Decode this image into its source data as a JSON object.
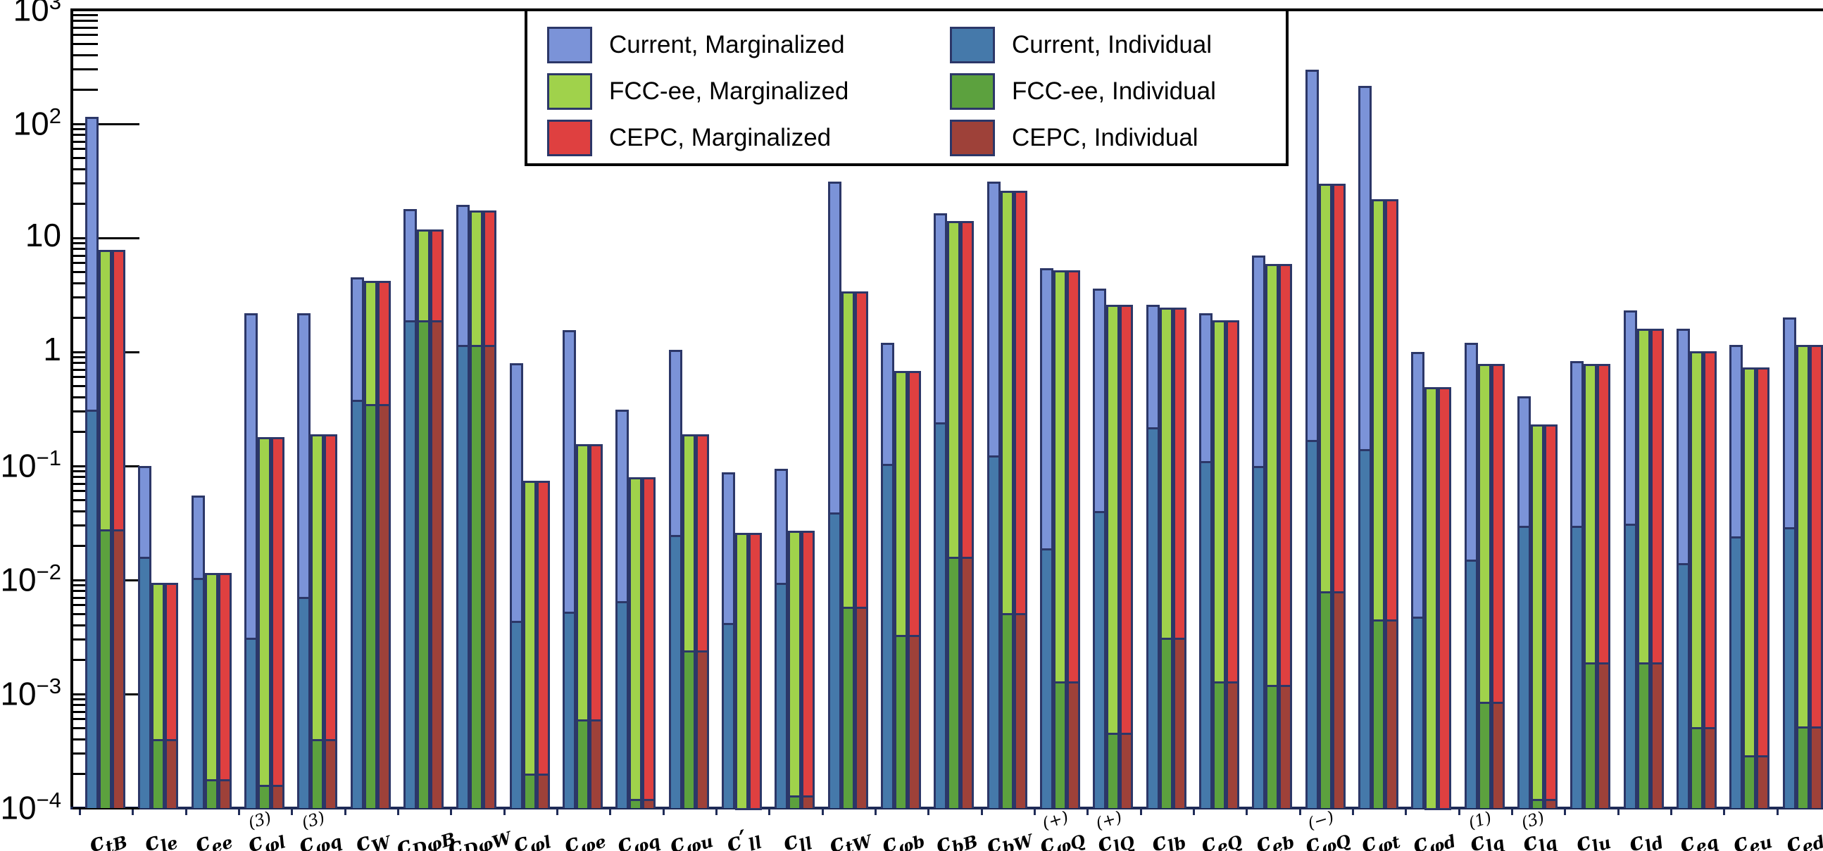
{
  "colors": {
    "current_marginalized": "#7b93d8",
    "current_individual": "#4579aa",
    "fccee_marginalized": "#a0d24b",
    "fccee_individual": "#5ca13e",
    "cepc_marginalized": "#df4040",
    "cepc_individual": "#9e4139",
    "bar_border": "#2c3768",
    "axis_line": "#000000",
    "bottom_axis_line": "#1f2b57"
  },
  "legend": {
    "entries": [
      {
        "key": "current_marginalized",
        "label": "Current, Marginalized",
        "col": 0,
        "row": 0
      },
      {
        "key": "fccee_marginalized",
        "label": "FCC-ee, Marginalized",
        "col": 0,
        "row": 1
      },
      {
        "key": "cepc_marginalized",
        "label": "CEPC, Marginalized",
        "col": 0,
        "row": 2
      },
      {
        "key": "current_individual",
        "label": "Current, Individual",
        "col": 1,
        "row": 0
      },
      {
        "key": "fccee_individual",
        "label": "FCC-ee, Individual",
        "col": 1,
        "row": 1
      },
      {
        "key": "cepc_individual",
        "label": "CEPC, Individual",
        "col": 1,
        "row": 2
      }
    ]
  },
  "axis": {
    "yscale": "log",
    "ylim": [
      0.0001,
      1000
    ],
    "y_major_ticks": [
      {
        "value": 1000,
        "base": "10",
        "exp": "3"
      },
      {
        "value": 100,
        "base": "10",
        "exp": "2"
      },
      {
        "value": 10,
        "base": "10",
        "exp": ""
      },
      {
        "value": 1,
        "base": "1",
        "exp": ""
      },
      {
        "value": 0.1,
        "base": "10",
        "exp": "−1"
      },
      {
        "value": 0.01,
        "base": "10",
        "exp": "−2"
      },
      {
        "value": 0.001,
        "base": "10",
        "exp": "−3"
      },
      {
        "value": 0.0001,
        "base": "10",
        "exp": "−4"
      }
    ]
  },
  "chart_data": {
    "type": "bar",
    "yscale": "log",
    "ylim": [
      0.0001,
      1000
    ],
    "title": "",
    "xlabel": "",
    "ylabel": "",
    "legend_position": "top-center",
    "grid": false,
    "series_order": [
      "current_marginalized",
      "fccee_marginalized",
      "cepc_marginalized",
      "current_individual",
      "fccee_individual",
      "cepc_individual"
    ],
    "categories": [
      "c_tB",
      "c_le",
      "c_ee",
      "c_phi-l(3)",
      "c_phi-q(3)",
      "c_W",
      "c_DphiB",
      "c_DphiW",
      "c_phi-l",
      "c_phi-e",
      "c_phi-q",
      "c_phi-u",
      "c'_ll",
      "c_ll",
      "c_tW",
      "c_phi-b",
      "c_bB",
      "c_bW",
      "c_phiQ(+)",
      "c_lQ(+)",
      "c_lb",
      "c_eQ",
      "c_eb",
      "c_phiQ(−)",
      "c_phi-t",
      "c_phi-d",
      "c_lq(1)",
      "c_lq(3)",
      "c_lu",
      "c_ld",
      "c_eq",
      "c_eu",
      "c_ed"
    ],
    "groups": [
      {
        "base": "c",
        "prime": false,
        "sup": "",
        "sub": "tB",
        "marg": {
          "current": 115,
          "fccee": 7.8,
          "cepc": 7.8
        },
        "indiv": {
          "current": 0.31,
          "fccee": 0.028,
          "cepc": 0.028
        }
      },
      {
        "base": "c",
        "prime": false,
        "sup": "",
        "sub": "le",
        "marg": {
          "current": 0.1,
          "fccee": 0.0095,
          "cepc": 0.0095
        },
        "indiv": {
          "current": 0.016,
          "fccee": 0.0004,
          "cepc": 0.0004
        }
      },
      {
        "base": "c",
        "prime": false,
        "sup": "",
        "sub": "ee",
        "marg": {
          "current": 0.055,
          "fccee": 0.0115,
          "cepc": 0.0115
        },
        "indiv": {
          "current": 0.0105,
          "fccee": 0.00018,
          "cepc": 0.00018
        }
      },
      {
        "base": "c",
        "prime": false,
        "sup": "(3)",
        "sub": "φl",
        "marg": {
          "current": 2.2,
          "fccee": 0.18,
          "cepc": 0.18
        },
        "indiv": {
          "current": 0.0031,
          "fccee": 0.00016,
          "cepc": 0.00016
        }
      },
      {
        "base": "c",
        "prime": false,
        "sup": "(3)",
        "sub": "φq",
        "marg": {
          "current": 2.2,
          "fccee": 0.19,
          "cepc": 0.19
        },
        "indiv": {
          "current": 0.0071,
          "fccee": 0.0004,
          "cepc": 0.0004
        }
      },
      {
        "base": "c",
        "prime": false,
        "sup": "",
        "sub": "W",
        "marg": {
          "current": 4.5,
          "fccee": 4.2,
          "cepc": 4.2
        },
        "indiv": {
          "current": 0.38,
          "fccee": 0.35,
          "cepc": 0.35
        }
      },
      {
        "base": "c",
        "prime": false,
        "sup": "",
        "sub": "DφB",
        "marg": {
          "current": 18,
          "fccee": 11.8,
          "cepc": 11.8
        },
        "indiv": {
          "current": 1.9,
          "fccee": 1.9,
          "cepc": 1.9
        }
      },
      {
        "base": "c",
        "prime": false,
        "sup": "",
        "sub": "DφW",
        "marg": {
          "current": 19.5,
          "fccee": 17.5,
          "cepc": 17.5
        },
        "indiv": {
          "current": 1.15,
          "fccee": 1.15,
          "cepc": 1.15
        }
      },
      {
        "base": "c",
        "prime": false,
        "sup": "",
        "sub": "φl",
        "marg": {
          "current": 0.8,
          "fccee": 0.074,
          "cepc": 0.074
        },
        "indiv": {
          "current": 0.0044,
          "fccee": 0.0002,
          "cepc": 0.0002
        }
      },
      {
        "base": "c",
        "prime": false,
        "sup": "",
        "sub": "φe",
        "marg": {
          "current": 1.55,
          "fccee": 0.155,
          "cepc": 0.155
        },
        "indiv": {
          "current": 0.0053,
          "fccee": 0.0006,
          "cepc": 0.0006
        }
      },
      {
        "base": "c",
        "prime": false,
        "sup": "",
        "sub": "φq",
        "marg": {
          "current": 0.31,
          "fccee": 0.08,
          "cepc": 0.08
        },
        "indiv": {
          "current": 0.0065,
          "fccee": 0.00012,
          "cepc": 0.00012
        }
      },
      {
        "base": "c",
        "prime": false,
        "sup": "",
        "sub": "φu",
        "marg": {
          "current": 1.05,
          "fccee": 0.19,
          "cepc": 0.19
        },
        "indiv": {
          "current": 0.025,
          "fccee": 0.0024,
          "cepc": 0.0024
        }
      },
      {
        "base": "c",
        "prime": true,
        "sup": "",
        "sub": "ll",
        "marg": {
          "current": 0.088,
          "fccee": 0.026,
          "cepc": 0.026
        },
        "indiv": {
          "current": 0.0042,
          "fccee": 0.0001,
          "cepc": 0.0001
        }
      },
      {
        "base": "c",
        "prime": false,
        "sup": "",
        "sub": "ll",
        "marg": {
          "current": 0.095,
          "fccee": 0.027,
          "cepc": 0.027
        },
        "indiv": {
          "current": 0.0095,
          "fccee": 0.00013,
          "cepc": 0.00013
        }
      },
      {
        "base": "c",
        "prime": false,
        "sup": "",
        "sub": "tW",
        "marg": {
          "current": 31,
          "fccee": 3.4,
          "cepc": 3.4
        },
        "indiv": {
          "current": 0.039,
          "fccee": 0.0058,
          "cepc": 0.0058
        }
      },
      {
        "base": "c",
        "prime": false,
        "sup": "",
        "sub": "φb",
        "marg": {
          "current": 1.2,
          "fccee": 0.68,
          "cepc": 0.68
        },
        "indiv": {
          "current": 0.104,
          "fccee": 0.0033,
          "cepc": 0.0033
        }
      },
      {
        "base": "c",
        "prime": false,
        "sup": "",
        "sub": "bB",
        "marg": {
          "current": 16.5,
          "fccee": 14,
          "cepc": 14
        },
        "indiv": {
          "current": 0.24,
          "fccee": 0.016,
          "cepc": 0.016
        }
      },
      {
        "base": "c",
        "prime": false,
        "sup": "",
        "sub": "bW",
        "marg": {
          "current": 31,
          "fccee": 26,
          "cepc": 26
        },
        "indiv": {
          "current": 0.124,
          "fccee": 0.0051,
          "cepc": 0.0051
        }
      },
      {
        "base": "c",
        "prime": false,
        "sup": "(+)",
        "sub": "φQ",
        "marg": {
          "current": 5.4,
          "fccee": 5.2,
          "cepc": 5.2
        },
        "indiv": {
          "current": 0.019,
          "fccee": 0.0013,
          "cepc": 0.0013
        }
      },
      {
        "base": "c",
        "prime": false,
        "sup": "(+)",
        "sub": "lQ",
        "marg": {
          "current": 3.6,
          "fccee": 2.6,
          "cepc": 2.6
        },
        "indiv": {
          "current": 0.04,
          "fccee": 0.00046,
          "cepc": 0.00046
        }
      },
      {
        "base": "c",
        "prime": false,
        "sup": "",
        "sub": "lb",
        "marg": {
          "current": 2.6,
          "fccee": 2.45,
          "cepc": 2.45
        },
        "indiv": {
          "current": 0.22,
          "fccee": 0.0031,
          "cepc": 0.0031
        }
      },
      {
        "base": "c",
        "prime": false,
        "sup": "",
        "sub": "eQ",
        "marg": {
          "current": 2.2,
          "fccee": 1.9,
          "cepc": 1.9
        },
        "indiv": {
          "current": 0.11,
          "fccee": 0.0013,
          "cepc": 0.0013
        }
      },
      {
        "base": "c",
        "prime": false,
        "sup": "",
        "sub": "eb",
        "marg": {
          "current": 7.0,
          "fccee": 5.9,
          "cepc": 5.9
        },
        "indiv": {
          "current": 0.1,
          "fccee": 0.0012,
          "cepc": 0.0012
        }
      },
      {
        "base": "c",
        "prime": false,
        "sup": "(−)",
        "sub": "φQ",
        "marg": {
          "current": 300,
          "fccee": 30,
          "cepc": 30
        },
        "indiv": {
          "current": 0.17,
          "fccee": 0.008,
          "cepc": 0.008
        }
      },
      {
        "base": "c",
        "prime": false,
        "sup": "",
        "sub": "φt",
        "marg": {
          "current": 215,
          "fccee": 22,
          "cepc": 22
        },
        "indiv": {
          "current": 0.14,
          "fccee": 0.0045,
          "cepc": 0.0045
        }
      },
      {
        "base": "c",
        "prime": false,
        "sup": "",
        "sub": "φd",
        "marg": {
          "current": 1.0,
          "fccee": 0.49,
          "cepc": 0.49
        },
        "indiv": {
          "current": 0.0048,
          "fccee": 0.0001,
          "cepc": 0.0001
        }
      },
      {
        "base": "c",
        "prime": false,
        "sup": "(1)",
        "sub": "lq",
        "marg": {
          "current": 1.2,
          "fccee": 0.78,
          "cepc": 0.78
        },
        "indiv": {
          "current": 0.015,
          "fccee": 0.00085,
          "cepc": 0.00085
        }
      },
      {
        "base": "c",
        "prime": false,
        "sup": "(3)",
        "sub": "lq",
        "marg": {
          "current": 0.41,
          "fccee": 0.23,
          "cepc": 0.23
        },
        "indiv": {
          "current": 0.03,
          "fccee": 0.00012,
          "cepc": 0.00012
        }
      },
      {
        "base": "c",
        "prime": false,
        "sup": "",
        "sub": "lu",
        "marg": {
          "current": 0.83,
          "fccee": 0.79,
          "cepc": 0.79
        },
        "indiv": {
          "current": 0.03,
          "fccee": 0.0019,
          "cepc": 0.0019
        }
      },
      {
        "base": "c",
        "prime": false,
        "sup": "",
        "sub": "ld",
        "marg": {
          "current": 2.3,
          "fccee": 1.6,
          "cepc": 1.6
        },
        "indiv": {
          "current": 0.031,
          "fccee": 0.0019,
          "cepc": 0.0019
        }
      },
      {
        "base": "c",
        "prime": false,
        "sup": "",
        "sub": "eq",
        "marg": {
          "current": 1.6,
          "fccee": 1.02,
          "cepc": 1.02
        },
        "indiv": {
          "current": 0.014,
          "fccee": 0.00051,
          "cepc": 0.00051
        }
      },
      {
        "base": "c",
        "prime": false,
        "sup": "",
        "sub": "eu",
        "marg": {
          "current": 1.15,
          "fccee": 0.73,
          "cepc": 0.73
        },
        "indiv": {
          "current": 0.024,
          "fccee": 0.00029,
          "cepc": 0.00029
        }
      },
      {
        "base": "c",
        "prime": false,
        "sup": "",
        "sub": "ed",
        "marg": {
          "current": 2.0,
          "fccee": 1.15,
          "cepc": 1.15
        },
        "indiv": {
          "current": 0.029,
          "fccee": 0.00052,
          "cepc": 0.00052
        }
      }
    ]
  }
}
